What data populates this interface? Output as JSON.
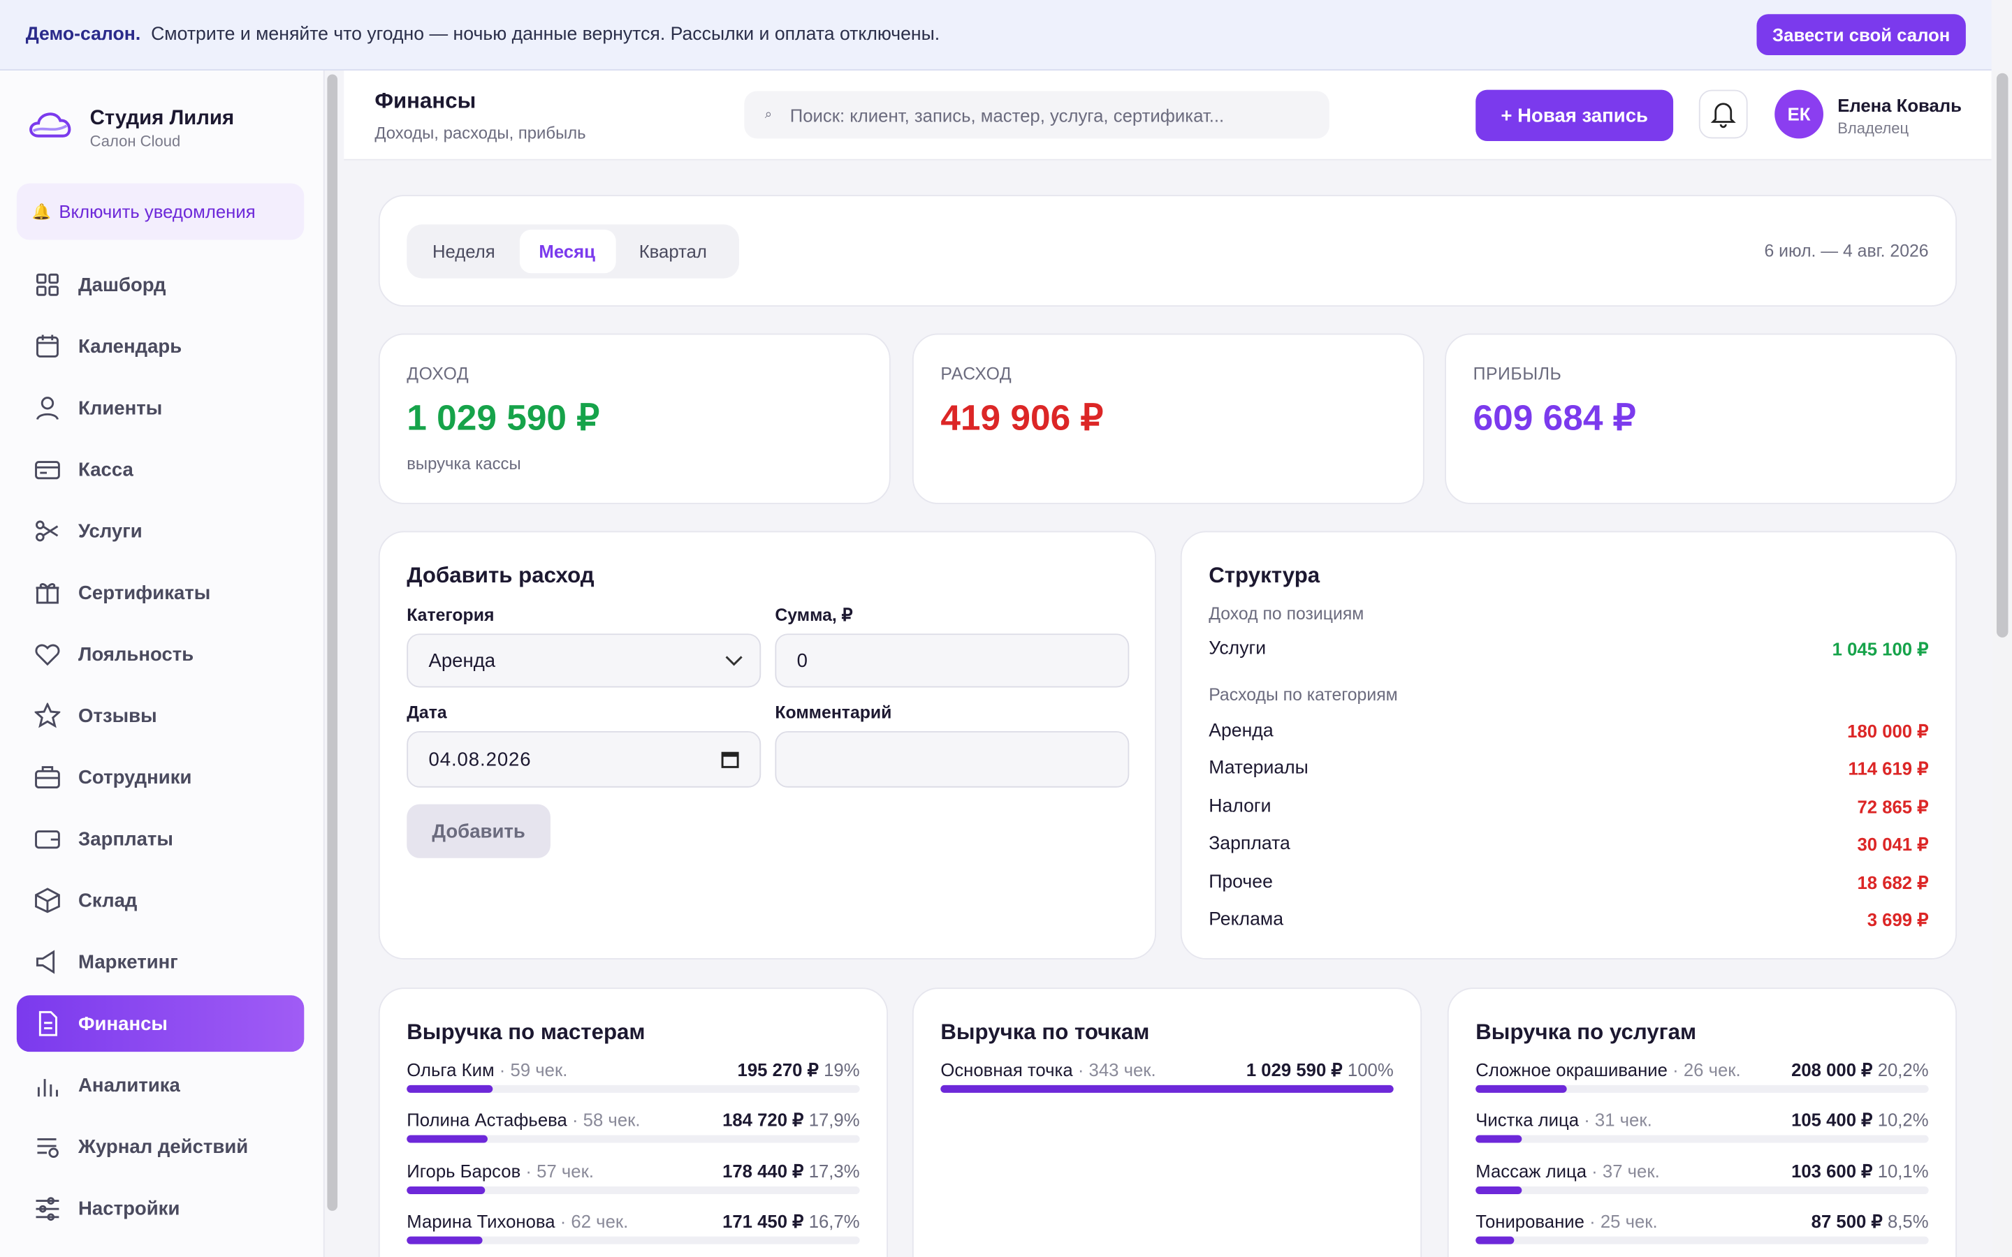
{
  "banner": {
    "label": "Демо-салон.",
    "text": "Смотрите и меняйте что угодно — ночью данные вернутся. Рассылки и оплата отключены.",
    "button": "Завести свой салон"
  },
  "sidebar": {
    "brand": "Студия Лилия",
    "brand_sub": "Салон Cloud",
    "notify": "Включить уведомления",
    "nav": [
      "Дашборд",
      "Календарь",
      "Клиенты",
      "Касса",
      "Услуги",
      "Сертификаты",
      "Лояльность",
      "Отзывы",
      "Сотрудники",
      "Зарплаты",
      "Склад",
      "Маркетинг",
      "Финансы",
      "Аналитика",
      "Журнал действий",
      "Настройки"
    ]
  },
  "header": {
    "title": "Финансы",
    "subtitle": "Доходы, расходы, прибыль",
    "search": "Поиск: клиент, запись, мастер, услуга, сертификат...",
    "new_button": "+ Новая запись",
    "avatar": "ЕК",
    "user": "Елена Коваль",
    "role": "Владелец"
  },
  "period": {
    "tabs": [
      "Неделя",
      "Месяц",
      "Квартал"
    ],
    "range": "6 июл. — 4 авг. 2026"
  },
  "kpis": [
    {
      "label": "ДОХОД",
      "value": "1 029 590 ₽",
      "note": "выручка кассы"
    },
    {
      "label": "РАСХОД",
      "value": "419 906 ₽"
    },
    {
      "label": "ПРИБЫЛЬ",
      "value": "609 684 ₽"
    }
  ],
  "form": {
    "title": "Добавить расход",
    "category_label": "Категория",
    "category": "Аренда",
    "sum_label": "Сумма, ₽",
    "sum": "0",
    "date_label": "Дата",
    "date": "04.08.2026",
    "comment_label": "Комментарий",
    "button": "Добавить"
  },
  "structure": {
    "title": "Структура",
    "income_title": "Доход по позициям",
    "income": [
      {
        "name": "Услуги",
        "amount": "1 045 100 ₽"
      }
    ],
    "expense_title": "Расходы по категориям",
    "expenses": [
      {
        "name": "Аренда",
        "amount": "180 000 ₽"
      },
      {
        "name": "Материалы",
        "amount": "114 619 ₽"
      },
      {
        "name": "Налоги",
        "amount": "72 865 ₽"
      },
      {
        "name": "Зарплата",
        "amount": "30 041 ₽"
      },
      {
        "name": "Прочее",
        "amount": "18 682 ₽"
      },
      {
        "name": "Реклама",
        "amount": "3 699 ₽"
      }
    ]
  },
  "revenue": [
    {
      "title": "Выручка по мастерам",
      "rows": [
        {
          "name": "Ольга Ким",
          "checks": "59 чек.",
          "amount": "195 270 ₽",
          "share": "19%"
        },
        {
          "name": "Полина Астафьева",
          "checks": "58 чек.",
          "amount": "184 720 ₽",
          "share": "17,9%"
        },
        {
          "name": "Игорь Барсов",
          "checks": "57 чек.",
          "amount": "178 440 ₽",
          "share": "17,3%"
        },
        {
          "name": "Марина Тихонова",
          "checks": "62 чек.",
          "amount": "171 450 ₽",
          "share": "16,7%"
        }
      ]
    },
    {
      "title": "Выручка по точкам",
      "rows": [
        {
          "name": "Основная точка",
          "checks": "343 чек.",
          "amount": "1 029 590 ₽",
          "share": "100%"
        }
      ]
    },
    {
      "title": "Выручка по услугам",
      "rows": [
        {
          "name": "Сложное окрашивание",
          "checks": "26 чек.",
          "amount": "208 000 ₽",
          "share": "20,2%"
        },
        {
          "name": "Чистка лица",
          "checks": "31 чек.",
          "amount": "105 400 ₽",
          "share": "10,2%"
        },
        {
          "name": "Массаж лица",
          "checks": "37 чек.",
          "amount": "103 600 ₽",
          "share": "10,1%"
        },
        {
          "name": "Тонирование",
          "checks": "25 чек.",
          "amount": "87 500 ₽",
          "share": "8,5%"
        }
      ]
    }
  ]
}
